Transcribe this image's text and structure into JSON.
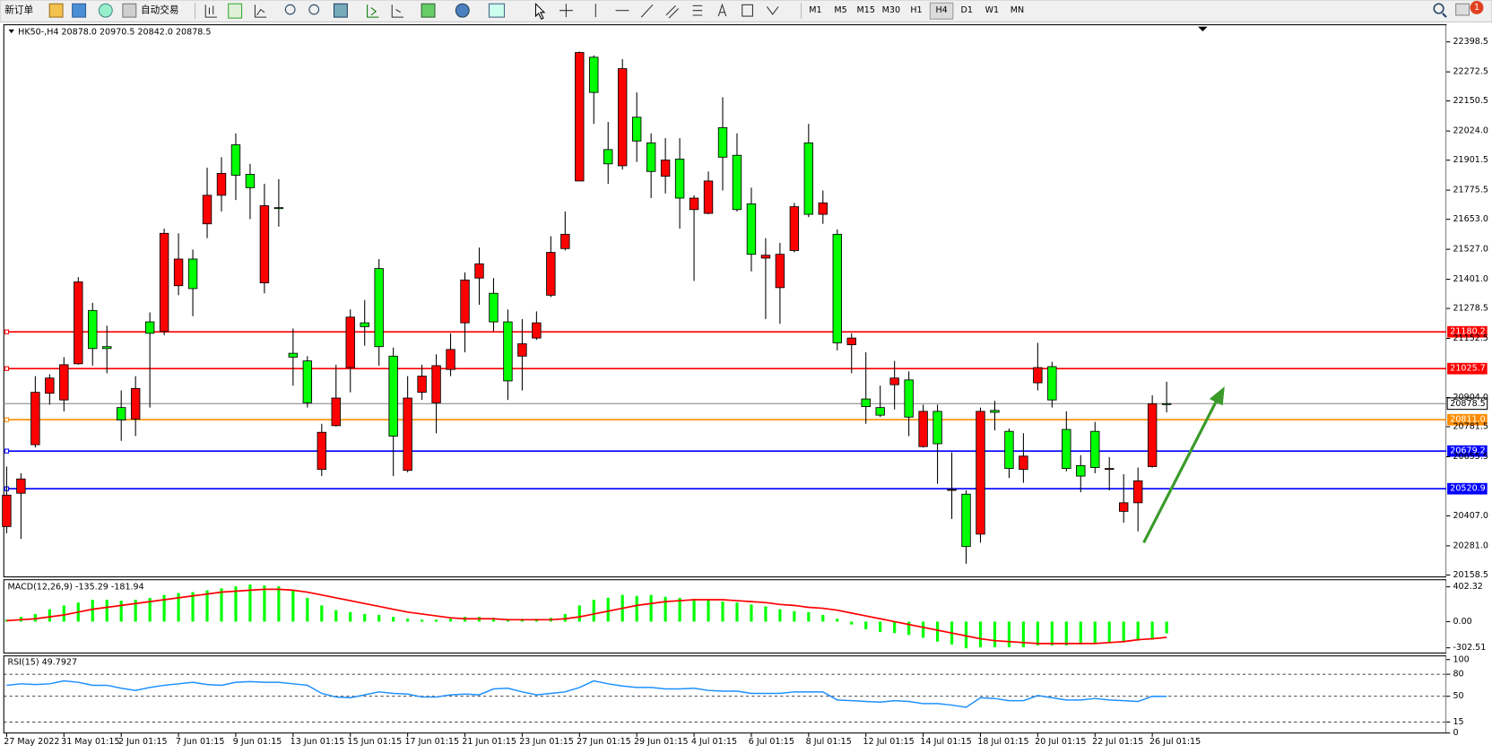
{
  "toolbar": {
    "new_order": "新订单",
    "auto_trading": "自动交易",
    "timeframes": [
      "M1",
      "M5",
      "M15",
      "M30",
      "H1",
      "H4",
      "D1",
      "W1",
      "MN"
    ],
    "active_timeframe": "H4",
    "notifications": 1
  },
  "chart_data": [
    {
      "type": "candlestick",
      "title": "HK50-,H4  20878.0 20970.5 20842.0 20878.5",
      "categories": [
        "27 May 2022",
        null,
        null,
        null,
        "31 May 01:15",
        null,
        null,
        null,
        "2 Jun 01:15",
        null,
        null,
        null,
        "7 Jun 01:15",
        null,
        null,
        null,
        "9 Jun 01:15",
        null,
        null,
        null,
        "13 Jun 01:15",
        null,
        null,
        null,
        "15 Jun 01:15",
        null,
        null,
        null,
        "17 Jun 01:15",
        null,
        null,
        null,
        "21 Jun 01:15",
        null,
        null,
        null,
        "23 Jun 01:15",
        null,
        null,
        null,
        "27 Jun 01:15",
        null,
        null,
        null,
        "29 Jun 01:15",
        null,
        null,
        null,
        "4 Jul 01:15",
        null,
        null,
        null,
        "6 Jul 01:15",
        null,
        null,
        null,
        "8 Jul 01:15",
        null,
        null,
        null,
        "12 Jul 01:15",
        null,
        null,
        null,
        "14 Jul 01:15",
        null,
        null,
        null,
        "18 Jul 01:15",
        null,
        null,
        null,
        "20 Jul 01:15",
        null,
        null,
        null,
        "22 Jul 01:15",
        null,
        null,
        null,
        "26 Jul 01:15",
        null
      ],
      "open": [
        20494,
        20562,
        20926,
        20986,
        21042,
        21390,
        21110,
        21110,
        20810,
        20942,
        21174,
        21594,
        21486,
        21362,
        21754,
        21846,
        21838,
        21786,
        21710,
        21698,
        21074,
        20882,
        20758,
        20902,
        21242,
        21202,
        21118,
        20742,
        20902,
        20994,
        21038,
        21106,
        21398,
        21466,
        21222,
        20974,
        21130,
        21218,
        21514,
        21590,
        22354,
        22186,
        21886,
        22286,
        21982,
        21854,
        21902,
        21742,
        21742,
        21814,
        21914,
        21694,
        21506,
        21502,
        21506,
        21706,
        21674,
        21722,
        21134,
        21154,
        20866,
        20830,
        20986,
        20822,
        20846,
        20710,
        20518,
        20278,
        20846,
        20842,
        20606,
        20658,
        21030,
        20894,
        20606,
        20574,
        20610,
        20606,
        20462,
        20554,
        20878,
        20878.0
      ],
      "high": [
        20614,
        20586,
        20994,
        21002,
        21074,
        21410,
        21302,
        21206,
        20934,
        20994,
        21262,
        21614,
        21594,
        21526,
        21870,
        21914,
        22014,
        21886,
        21802,
        21822,
        21194,
        21078,
        20794,
        21042,
        21274,
        21314,
        21486,
        21114,
        20994,
        21042,
        21086,
        21174,
        21430,
        21534,
        21406,
        21274,
        21234,
        21266,
        21582,
        21686,
        22358,
        22342,
        22062,
        22326,
        22186,
        22014,
        21994,
        21994,
        21754,
        21854,
        22166,
        22014,
        21786,
        21574,
        21554,
        21722,
        22054,
        21774,
        21610,
        21174,
        21094,
        20954,
        21058,
        21014,
        20874,
        20874,
        20674,
        20514,
        20862,
        20890,
        20774,
        20754,
        21134,
        21054,
        20846,
        20662,
        20802,
        20654,
        20582,
        20610,
        20914,
        20970.5
      ],
      "low": [
        20334,
        20310,
        20694,
        20874,
        20846,
        21042,
        21038,
        21006,
        20722,
        20742,
        20862,
        21166,
        21334,
        21246,
        21574,
        21686,
        21734,
        21654,
        21342,
        21622,
        20954,
        20862,
        20574,
        20782,
        20926,
        21122,
        21038,
        20574,
        20590,
        20894,
        20754,
        20994,
        21094,
        21294,
        21182,
        20894,
        20934,
        21146,
        21326,
        21522,
        21814,
        22054,
        21802,
        21862,
        21894,
        21742,
        21762,
        21614,
        21394,
        21674,
        21774,
        21686,
        21434,
        21234,
        21214,
        21514,
        21662,
        21634,
        21102,
        21006,
        20794,
        20822,
        20854,
        20742,
        20694,
        20542,
        20394,
        20206,
        20294,
        20766,
        20566,
        20546,
        20934,
        20862,
        20594,
        20506,
        20586,
        20514,
        20378,
        20342,
        20610,
        20842.0
      ],
      "close": [
        20362,
        20502,
        20706,
        20922,
        20894,
        21046,
        21270,
        21118,
        20862,
        20814,
        21222,
        21182,
        21374,
        21486,
        21634,
        21754,
        21966,
        21842,
        21386,
        21702,
        21090,
        21058,
        20602,
        20786,
        21030,
        21218,
        21446,
        21078,
        20598,
        20926,
        20882,
        21022,
        21218,
        21406,
        21342,
        21222,
        21078,
        21154,
        21334,
        21530,
        21814,
        22334,
        21946,
        21878,
        22082,
        21974,
        21834,
        21906,
        21694,
        21678,
        22038,
        21922,
        21718,
        21490,
        21366,
        21522,
        21974,
        21674,
        21590,
        21126,
        20898,
        20862,
        20958,
        20978,
        20698,
        20846,
        20514,
        20498,
        20330,
        20850,
        20762,
        20602,
        20966,
        21034,
        20770,
        20618,
        20762,
        20602,
        20426,
        20462,
        20614,
        20878.5
      ],
      "up_color": "#00ff00",
      "down_color": "#ff0000",
      "wick_color": "#000000",
      "ylim": [
        20150.5,
        22470.5
      ],
      "yticks": [
        22398.5,
        22272.5,
        22150.5,
        {
          "value": 22024,
          "label": "22024.0"
        },
        21901.5,
        21775.5,
        {
          "value": 21653,
          "label": "21653.0"
        },
        {
          "value": 21527,
          "label": "21527.0"
        },
        {
          "value": 21401,
          "label": "21401.0"
        },
        21278.5,
        21152.5,
        {
          "value": 20904,
          "label": "20904.0"
        },
        20781.5,
        20655.5,
        {
          "value": 20407,
          "label": "20407.0"
        },
        {
          "value": 20281,
          "label": "20281.0"
        },
        20158.5
      ],
      "levels": [
        {
          "value": 21180.2,
          "color": "#ff0000"
        },
        {
          "value": 21025.7,
          "color": "#ff0000"
        },
        {
          "value": 20811,
          "label": "20811.0",
          "color": "#ff8c00"
        },
        {
          "value": 20679.2,
          "color": "#0000ff"
        },
        {
          "value": 20520.9,
          "color": "#0000ff"
        }
      ],
      "last_price": 20878.5,
      "grid": false
    },
    {
      "type": "macd",
      "title": "MACD(12,26,9) -135.29 -181.94",
      "values": [
        22,
        55,
        88,
        143,
        187,
        220,
        253,
        253,
        242,
        253,
        275,
        308,
        330,
        341,
        363,
        385,
        407,
        429,
        418,
        407,
        363,
        275,
        187,
        132,
        110,
        88,
        77,
        55,
        33,
        22,
        22,
        33,
        55,
        55,
        44,
        33,
        33,
        33,
        44,
        88,
        187,
        253,
        275,
        308,
        297,
        308,
        286,
        275,
        264,
        253,
        231,
        220,
        198,
        176,
        143,
        121,
        110,
        77,
        33,
        -33,
        -88,
        -121,
        -132,
        -154,
        -187,
        -231,
        -264,
        -308,
        -297,
        -297,
        -297,
        -297,
        -275,
        -275,
        -275,
        -264,
        -253,
        -242,
        -231,
        -220,
        -209,
        -135.29
      ],
      "signal": [
        11,
        22,
        33,
        55,
        77,
        110,
        143,
        165,
        187,
        209,
        231,
        253,
        275,
        297,
        319,
        341,
        352,
        363,
        374,
        374,
        363,
        341,
        308,
        275,
        242,
        209,
        176,
        143,
        110,
        88,
        66,
        44,
        33,
        33,
        33,
        22,
        22,
        22,
        22,
        33,
        55,
        88,
        121,
        154,
        187,
        209,
        231,
        242,
        253,
        253,
        253,
        242,
        231,
        220,
        198,
        187,
        165,
        154,
        132,
        99,
        66,
        33,
        0,
        -33,
        -66,
        -99,
        -132,
        -165,
        -198,
        -220,
        -231,
        -242,
        -253,
        -253,
        -253,
        -253,
        -253,
        -242,
        -231,
        -209,
        -198,
        -181.94
      ],
      "color": "#00ff00",
      "signal_color": "#ff0000",
      "ylim": [
        -363,
        484
      ],
      "yticks": [
        402.32,
        {
          "value": 0,
          "label": "0.00"
        },
        -302.51
      ]
    },
    {
      "type": "line",
      "title": "RSI(15) 49.7927",
      "values": [
        65,
        67,
        66,
        67,
        71,
        69,
        65,
        65,
        61,
        58,
        62,
        65,
        67,
        69,
        66,
        65,
        69,
        70,
        69,
        69,
        67,
        65,
        54,
        49,
        48,
        52,
        56,
        54,
        53,
        49,
        49,
        52,
        53,
        52,
        60,
        61,
        56,
        52,
        54,
        56,
        62,
        71,
        67,
        64,
        62,
        62,
        60,
        60,
        61,
        58,
        57,
        57,
        54,
        54,
        54,
        56,
        56,
        56,
        45,
        44,
        43,
        42,
        44,
        43,
        40,
        40,
        38,
        35,
        48,
        47,
        44,
        44,
        51,
        48,
        45,
        45,
        47,
        45,
        44,
        43,
        50,
        49.7927
      ],
      "color": "#1e90ff",
      "ylim": [
        0,
        105
      ],
      "yticks": [
        100,
        80,
        50,
        15,
        0
      ],
      "levels": [
        80,
        50,
        15
      ]
    }
  ]
}
